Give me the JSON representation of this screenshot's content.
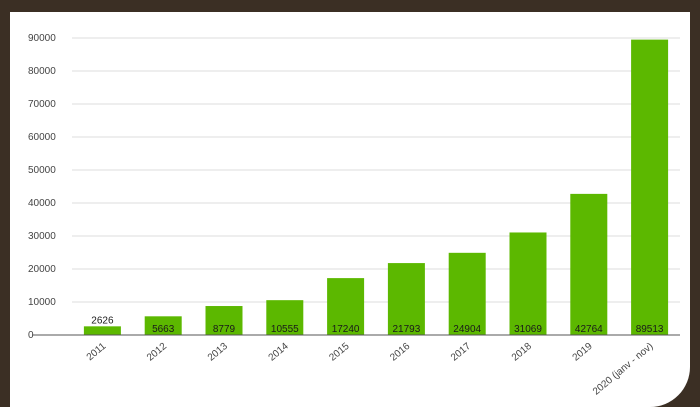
{
  "chart_data": {
    "type": "bar",
    "categories": [
      "2011",
      "2012",
      "2013",
      "2014",
      "2015",
      "2016",
      "2017",
      "2018",
      "2019",
      "2020 (janv - nov)"
    ],
    "values": [
      2626,
      5663,
      8779,
      10555,
      17240,
      21793,
      24904,
      31069,
      42764,
      89513
    ],
    "data_labels": [
      "2626",
      "5663",
      "8779",
      "10555",
      "17240",
      "21793",
      "24904",
      "31069",
      "42764",
      "89513"
    ],
    "yticks": [
      "0",
      "10000",
      "20000",
      "30000",
      "40000",
      "50000",
      "60000",
      "70000",
      "80000",
      "90000"
    ],
    "ylim": [
      0,
      90000
    ],
    "grid": true,
    "legend": "none",
    "title": "",
    "xlabel": "",
    "ylabel": "",
    "bar_color": "#5cb800",
    "grid_color": "#dcdcdc"
  }
}
